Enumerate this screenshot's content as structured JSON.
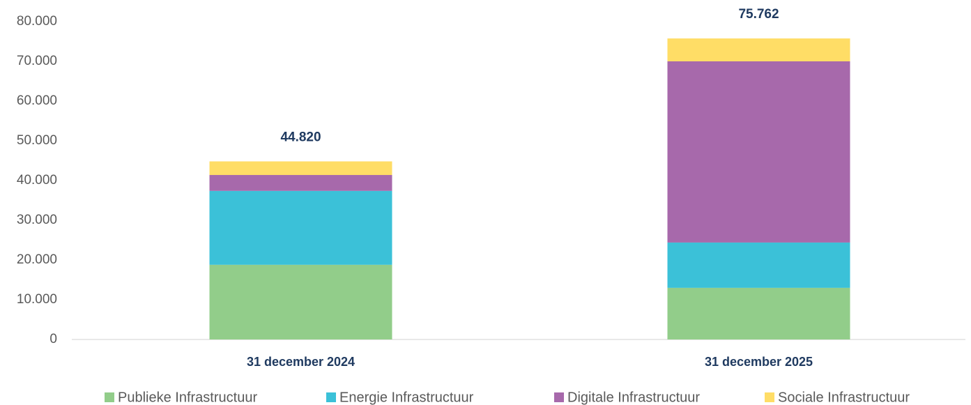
{
  "chart_data": {
    "type": "stacked-bar",
    "categories": [
      "31 december 2024",
      "31 december 2025"
    ],
    "series": [
      {
        "name": "Publieke Infrastructuur",
        "color": "#92cd8a",
        "values": [
          18800,
          13000
        ]
      },
      {
        "name": "Energie Infrastructuur",
        "color": "#3bc1d8",
        "values": [
          18600,
          11400
        ]
      },
      {
        "name": "Digitale Infrastructuur",
        "color": "#a769ab",
        "values": [
          4000,
          45600
        ]
      },
      {
        "name": "Sociale Infrastructuur",
        "color": "#ffdd66",
        "values": [
          3420,
          5762
        ]
      }
    ],
    "totals": {
      "values": [
        44820,
        75762
      ],
      "value_labels": [
        "44.820",
        "75.762"
      ]
    },
    "ylim": [
      0,
      80000
    ],
    "yticks": [
      0,
      {
        "value": 10000,
        "label": "10.000"
      },
      {
        "value": 20000,
        "label": "20.000"
      },
      {
        "value": 30000,
        "label": "30.000"
      },
      {
        "value": 40000,
        "label": "40.000"
      },
      {
        "value": 50000,
        "label": "50.000"
      },
      {
        "value": 60000,
        "label": "60.000"
      },
      {
        "value": 70000,
        "label": "70.000"
      },
      {
        "value": 80000,
        "label": "80.000"
      }
    ],
    "grid": false,
    "legend": "bottom"
  }
}
